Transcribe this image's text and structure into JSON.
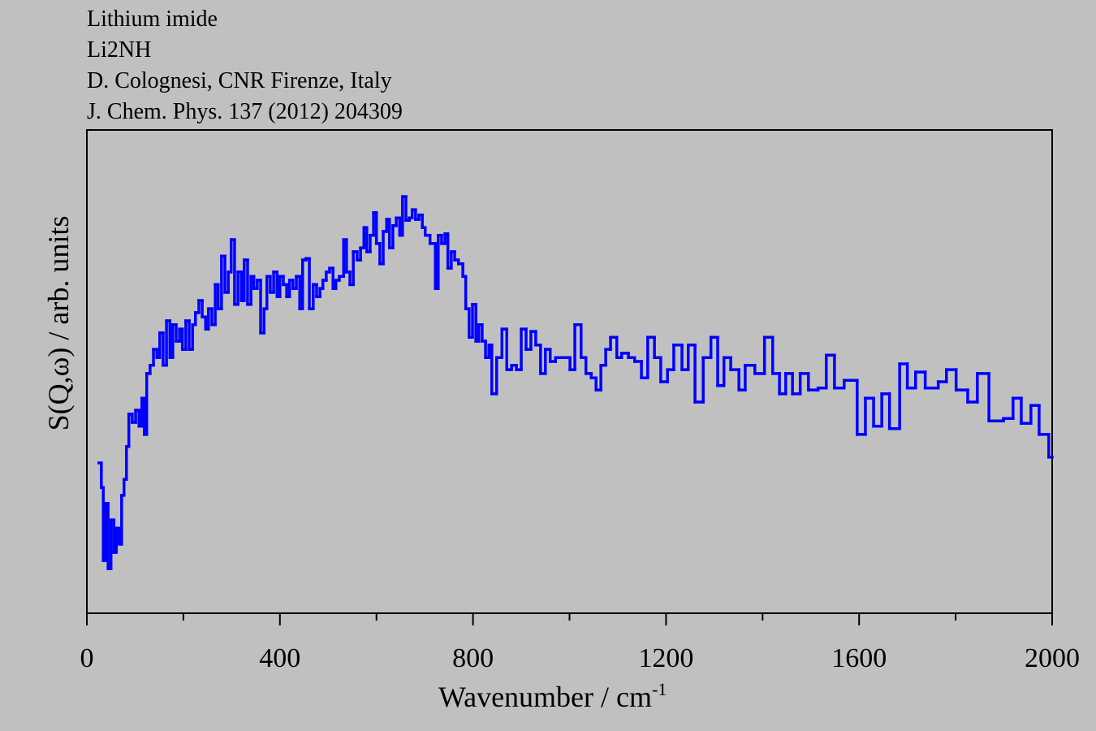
{
  "chart_data": {
    "type": "step",
    "title_lines": [
      "Lithium imide",
      "Li2NH",
      "D. Colognesi, CNR Firenze, Italy",
      "J. Chem. Phys. 137 (2012) 204309"
    ],
    "xlabel": "Wavenumber / cm",
    "xlabel_superscript": "-1",
    "ylabel": "S(Q,ω) / arb. units",
    "xlim": [
      0,
      2000
    ],
    "ylim": [
      0,
      100
    ],
    "xticks": [
      0,
      400,
      800,
      1200,
      1600,
      2000
    ],
    "xticks_minor": [
      200,
      600,
      1000,
      1400,
      1800
    ],
    "series": [
      {
        "color": "#0000ff",
        "x": [
          25,
          30,
          34,
          39,
          44,
          50,
          56,
          61,
          67,
          72,
          77,
          82,
          87,
          94,
          101,
          108,
          114,
          119,
          124,
          131,
          138,
          145,
          151,
          158,
          165,
          172,
          178,
          185,
          192,
          198,
          205,
          212,
          219,
          225,
          232,
          239,
          246,
          252,
          259,
          266,
          272,
          279,
          286,
          293,
          299,
          306,
          313,
          320,
          326,
          333,
          340,
          346,
          353,
          360,
          367,
          373,
          380,
          387,
          394,
          400,
          407,
          414,
          420,
          427,
          434,
          441,
          447,
          454,
          461,
          469,
          476,
          483,
          489,
          496,
          503,
          510,
          516,
          523,
          532,
          538,
          545,
          552,
          560,
          567,
          574,
          580,
          587,
          594,
          600,
          607,
          614,
          621,
          627,
          634,
          641,
          648,
          654,
          661,
          668,
          674,
          681,
          688,
          695,
          701,
          711,
          722,
          728,
          735,
          742,
          748,
          755,
          762,
          770,
          779,
          785,
          792,
          799,
          806,
          812,
          819,
          826,
          833,
          839,
          849,
          860,
          870,
          880,
          890,
          900,
          910,
          920,
          930,
          940,
          950,
          960,
          971,
          981,
          991,
          1001,
          1011,
          1024,
          1034,
          1045,
          1055,
          1065,
          1075,
          1085,
          1098,
          1108,
          1122,
          1135,
          1149,
          1162,
          1176,
          1189,
          1203,
          1216,
          1233,
          1246,
          1260,
          1277,
          1293,
          1307,
          1320,
          1334,
          1351,
          1364,
          1384,
          1404,
          1421,
          1435,
          1448,
          1462,
          1478,
          1495,
          1515,
          1532,
          1549,
          1569,
          1596,
          1613,
          1630,
          1647,
          1663,
          1684,
          1700,
          1717,
          1737,
          1764,
          1781,
          1801,
          1825,
          1845,
          1869,
          1899,
          1919,
          1936,
          1956,
          1973,
          1993
        ],
        "values": [
          31.1,
          26,
          10.9,
          22.7,
          9.2,
          19.3,
          12.6,
          17.6,
          14.3,
          24.4,
          27.7,
          34.5,
          41.2,
          39.5,
          42,
          38.7,
          44.5,
          37,
          49.6,
          51.3,
          54.6,
          52.9,
          58,
          51.3,
          60.5,
          52.9,
          59.7,
          56.3,
          58.8,
          54.6,
          60.5,
          54.6,
          59.7,
          62.2,
          64.7,
          61.3,
          58.8,
          63,
          59.7,
          68,
          63,
          73.9,
          66.4,
          70.6,
          77.3,
          63.9,
          70.6,
          64.7,
          73.1,
          63.9,
          69.7,
          67.2,
          68.9,
          58,
          63,
          69.7,
          66.4,
          70.6,
          65.5,
          69.7,
          68,
          65.5,
          68.9,
          67.2,
          69.7,
          63,
          73.1,
          73.4,
          63,
          68,
          65.5,
          67.2,
          68.9,
          70.6,
          71.4,
          67.2,
          68.9,
          69.7,
          77.3,
          70.6,
          68,
          74.8,
          73.1,
          75.6,
          79.8,
          74.8,
          78.2,
          82.9,
          76.5,
          72.3,
          79,
          81.5,
          75.6,
          80.2,
          81.8,
          78.2,
          86.2,
          81.3,
          81.8,
          83.5,
          81.5,
          82.4,
          79.8,
          78.2,
          76.5,
          67.2,
          78.2,
          76.5,
          78.5,
          71.4,
          74.8,
          73.1,
          72.3,
          69.7,
          63,
          57.1,
          63.9,
          56.3,
          59.7,
          56.3,
          52.9,
          55.5,
          45.4,
          52.9,
          58.8,
          50.4,
          51.3,
          50.4,
          58.8,
          54.6,
          58.3,
          55.5,
          49.6,
          54.6,
          52.1,
          52.9,
          52.9,
          52.9,
          50.4,
          59.7,
          52.9,
          49.6,
          48.7,
          46.2,
          51.3,
          54.6,
          57.1,
          52.9,
          53.8,
          52.9,
          52.1,
          48.7,
          57.1,
          52.9,
          47.9,
          50.4,
          55.5,
          50.4,
          55.5,
          43.7,
          52.9,
          57.1,
          47.1,
          52.9,
          50.4,
          46.2,
          51.3,
          49.6,
          57.1,
          49.6,
          45.4,
          49.6,
          45.4,
          49.6,
          46.2,
          46.6,
          53.4,
          46.6,
          48.2,
          37,
          44.5,
          38.7,
          45.4,
          38.2,
          51.6,
          46.6,
          49.9,
          46.6,
          47.9,
          50.4,
          46.2,
          43.7,
          49.6,
          39.8,
          40.3,
          44.5,
          39.3,
          43,
          37,
          32.3
        ]
      }
    ]
  }
}
